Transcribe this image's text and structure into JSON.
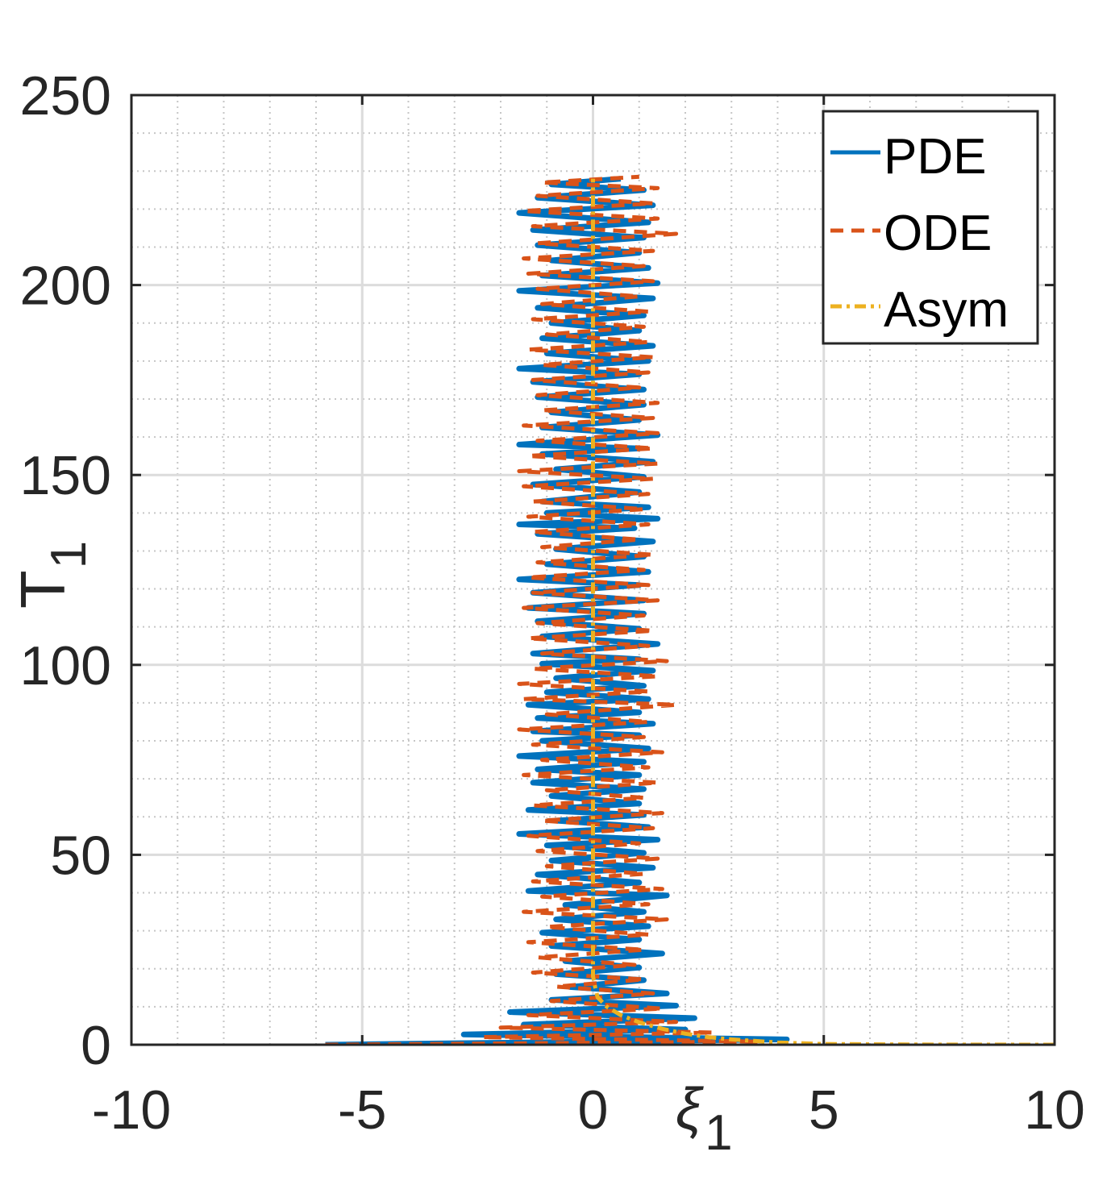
{
  "chart_data": {
    "type": "line",
    "title": "",
    "xlabel": {
      "main": "ξ",
      "sub": "1"
    },
    "ylabel": {
      "main": "T",
      "sub": "1"
    },
    "xlim": [
      -10,
      10
    ],
    "ylim": [
      0,
      250
    ],
    "x_ticks": [
      -10,
      -5,
      0,
      5,
      10
    ],
    "y_ticks": [
      0,
      50,
      100,
      150,
      200,
      250
    ],
    "x_tick_labels": [
      "-10",
      "-5",
      "0",
      "5",
      "10"
    ],
    "y_tick_labels": [
      "0",
      "50",
      "100",
      "150",
      "200",
      "250"
    ],
    "grid": "on (major solid, minor dotted)",
    "legend_position": "top-right",
    "series": [
      {
        "name": "PDE",
        "color": "#0072BD",
        "style": "solid",
        "points": [
          [
            -5.8,
            0.0
          ],
          [
            4.2,
            1.4
          ],
          [
            -2.8,
            2.7
          ],
          [
            2.0,
            4.0
          ],
          [
            -1.5,
            5.3
          ],
          [
            2.2,
            7.0
          ],
          [
            -1.8,
            8.6
          ],
          [
            1.8,
            10.3
          ],
          [
            -0.9,
            11.8
          ],
          [
            1.6,
            13.5
          ],
          [
            -0.5,
            15.2
          ],
          [
            1.1,
            17.0
          ],
          [
            -0.8,
            18.6
          ],
          [
            1.0,
            20.3
          ],
          [
            -0.6,
            22.0
          ],
          [
            1.5,
            24.0
          ],
          [
            -0.9,
            26.0
          ],
          [
            1.0,
            27.7
          ],
          [
            -1.1,
            29.5
          ],
          [
            1.2,
            31.2
          ],
          [
            -0.8,
            33.0
          ],
          [
            1.1,
            35.0
          ],
          [
            -0.6,
            36.8
          ],
          [
            1.6,
            39.3
          ],
          [
            -1.4,
            40.5
          ],
          [
            1.0,
            42.7
          ],
          [
            -1.2,
            44.8
          ],
          [
            1.3,
            46.6
          ],
          [
            -0.9,
            48.5
          ],
          [
            1.1,
            50.5
          ],
          [
            -1.0,
            52.5
          ],
          [
            1.4,
            54.0
          ],
          [
            -1.6,
            55.5
          ],
          [
            1.2,
            57.3
          ],
          [
            -0.8,
            59.0
          ],
          [
            1.1,
            60.5
          ],
          [
            -1.4,
            61.8
          ],
          [
            1.0,
            63.5
          ],
          [
            -0.9,
            65.5
          ],
          [
            1.1,
            67.3
          ],
          [
            -1.3,
            69.0
          ],
          [
            1.0,
            71.0
          ],
          [
            -1.2,
            72.5
          ],
          [
            1.1,
            74.5
          ],
          [
            -1.6,
            76.0
          ],
          [
            1.2,
            78.0
          ],
          [
            -1.1,
            80.0
          ],
          [
            1.0,
            81.5
          ],
          [
            -1.3,
            82.5
          ],
          [
            1.3,
            84.5
          ],
          [
            -1.2,
            86.0
          ],
          [
            1.0,
            87.5
          ],
          [
            -1.4,
            89.5
          ],
          [
            1.2,
            91.0
          ],
          [
            -1.0,
            92.8
          ],
          [
            1.1,
            94.5
          ],
          [
            -0.8,
            96.5
          ],
          [
            1.3,
            98.5
          ],
          [
            -1.1,
            100.3
          ],
          [
            1.0,
            101.5
          ],
          [
            -1.3,
            103.0
          ],
          [
            1.4,
            105.5
          ],
          [
            -1.1,
            107.5
          ],
          [
            1.0,
            109.5
          ],
          [
            -1.2,
            111.5
          ],
          [
            1.1,
            113.5
          ],
          [
            -1.4,
            115.0
          ],
          [
            1.1,
            117.0
          ],
          [
            -1.3,
            119.0
          ],
          [
            1.0,
            121.0
          ],
          [
            -1.6,
            122.5
          ],
          [
            1.2,
            124.5
          ],
          [
            -1.0,
            126.5
          ],
          [
            1.1,
            128.5
          ],
          [
            -0.8,
            130.5
          ],
          [
            1.3,
            132.5
          ],
          [
            -1.2,
            134.5
          ],
          [
            0.9,
            136.0
          ],
          [
            -1.6,
            137.0
          ],
          [
            1.4,
            138.5
          ],
          [
            -1.0,
            140.0
          ],
          [
            1.2,
            141.5
          ],
          [
            -1.1,
            143.0
          ],
          [
            1.0,
            145.5
          ],
          [
            -1.3,
            147.5
          ],
          [
            1.1,
            149.5
          ],
          [
            -0.8,
            151.5
          ],
          [
            1.3,
            153.5
          ],
          [
            -1.1,
            155.5
          ],
          [
            1.0,
            157.0
          ],
          [
            -1.6,
            158.0
          ],
          [
            1.4,
            160.5
          ],
          [
            -1.1,
            162.5
          ],
          [
            1.0,
            164.5
          ],
          [
            -0.9,
            166.5
          ],
          [
            1.1,
            168.5
          ],
          [
            -1.2,
            170.5
          ],
          [
            1.1,
            172.5
          ],
          [
            -1.3,
            174.5
          ],
          [
            1.0,
            176.5
          ],
          [
            -1.6,
            178.0
          ],
          [
            1.2,
            180.0
          ],
          [
            -1.0,
            182.0
          ],
          [
            1.3,
            184.0
          ],
          [
            -1.1,
            186.0
          ],
          [
            1.0,
            188.0
          ],
          [
            -0.9,
            190.0
          ],
          [
            1.1,
            192.0
          ],
          [
            -1.2,
            194.0
          ],
          [
            1.3,
            196.5
          ],
          [
            -1.6,
            198.5
          ],
          [
            1.4,
            200.5
          ],
          [
            -1.1,
            202.5
          ],
          [
            1.2,
            204.5
          ],
          [
            -0.9,
            206.5
          ],
          [
            1.0,
            208.5
          ],
          [
            -1.2,
            210.5
          ],
          [
            1.1,
            212.5
          ],
          [
            -1.3,
            214.5
          ],
          [
            1.2,
            216.5
          ],
          [
            -1.6,
            219.0
          ],
          [
            1.3,
            221.0
          ],
          [
            -1.2,
            223.0
          ],
          [
            1.1,
            225.0
          ],
          [
            -0.9,
            226.5
          ],
          [
            0.6,
            228.0
          ]
        ]
      },
      {
        "name": "ODE",
        "color": "#D95319",
        "style": "dashed",
        "points": [
          [
            -5.8,
            0.0
          ],
          [
            3.6,
            0.8
          ],
          [
            -2.4,
            2.0
          ],
          [
            2.6,
            3.2
          ],
          [
            -2.0,
            4.5
          ],
          [
            1.8,
            6.0
          ],
          [
            -1.4,
            7.8
          ],
          [
            1.5,
            9.5
          ],
          [
            -0.9,
            11.5
          ],
          [
            1.3,
            13.5
          ],
          [
            -0.8,
            15.3
          ],
          [
            1.1,
            17.2
          ],
          [
            -1.3,
            19.0
          ],
          [
            0.9,
            21.0
          ],
          [
            -1.2,
            23.0
          ],
          [
            1.1,
            25.0
          ],
          [
            -1.4,
            27.0
          ],
          [
            1.2,
            29.0
          ],
          [
            -1.0,
            31.0
          ],
          [
            1.6,
            33.0
          ],
          [
            -1.5,
            35.0
          ],
          [
            1.2,
            37.0
          ],
          [
            -1.1,
            39.0
          ],
          [
            1.5,
            41.0
          ],
          [
            -1.3,
            43.0
          ],
          [
            1.1,
            45.0
          ],
          [
            -1.0,
            47.0
          ],
          [
            1.4,
            49.0
          ],
          [
            -1.2,
            51.0
          ],
          [
            1.0,
            53.0
          ],
          [
            -1.4,
            55.0
          ],
          [
            1.3,
            57.0
          ],
          [
            -1.1,
            59.0
          ],
          [
            1.5,
            61.0
          ],
          [
            -1.3,
            63.0
          ],
          [
            1.1,
            65.0
          ],
          [
            -1.0,
            67.0
          ],
          [
            1.4,
            69.0
          ],
          [
            -1.5,
            71.0
          ],
          [
            1.2,
            73.0
          ],
          [
            -1.1,
            75.0
          ],
          [
            1.5,
            77.0
          ],
          [
            -1.3,
            79.0
          ],
          [
            1.1,
            81.0
          ],
          [
            -1.6,
            83.0
          ],
          [
            1.2,
            85.0
          ],
          [
            -1.0,
            87.0
          ],
          [
            1.8,
            89.5
          ],
          [
            -1.5,
            91.0
          ],
          [
            1.2,
            93.0
          ],
          [
            -1.6,
            95.0
          ],
          [
            1.4,
            97.0
          ],
          [
            -1.3,
            99.0
          ],
          [
            1.6,
            101.0
          ],
          [
            -1.1,
            103.0
          ],
          [
            1.2,
            105.0
          ],
          [
            -1.4,
            107.0
          ],
          [
            1.3,
            109.0
          ],
          [
            -1.2,
            111.0
          ],
          [
            1.1,
            113.0
          ],
          [
            -1.5,
            115.0
          ],
          [
            1.4,
            117.0
          ],
          [
            -1.3,
            119.0
          ],
          [
            1.2,
            121.0
          ],
          [
            -1.4,
            123.0
          ],
          [
            1.1,
            125.0
          ],
          [
            -1.2,
            127.0
          ],
          [
            1.3,
            129.0
          ],
          [
            -1.1,
            131.0
          ],
          [
            1.0,
            133.0
          ],
          [
            -1.3,
            135.0
          ],
          [
            1.2,
            137.0
          ],
          [
            -1.4,
            139.0
          ],
          [
            1.1,
            141.0
          ],
          [
            -1.3,
            143.0
          ],
          [
            1.2,
            145.0
          ],
          [
            -1.5,
            147.0
          ],
          [
            1.3,
            149.0
          ],
          [
            -1.6,
            151.0
          ],
          [
            1.4,
            153.0
          ],
          [
            -1.4,
            155.0
          ],
          [
            1.3,
            157.0
          ],
          [
            -1.2,
            159.0
          ],
          [
            1.4,
            161.0
          ],
          [
            -1.5,
            163.0
          ],
          [
            1.3,
            165.0
          ],
          [
            -1.1,
            167.0
          ],
          [
            1.4,
            169.0
          ],
          [
            -1.2,
            171.0
          ],
          [
            1.0,
            173.0
          ],
          [
            -1.3,
            175.0
          ],
          [
            1.2,
            177.0
          ],
          [
            -1.1,
            179.0
          ],
          [
            1.3,
            181.0
          ],
          [
            -1.4,
            183.0
          ],
          [
            1.2,
            185.0
          ],
          [
            -1.0,
            187.0
          ],
          [
            1.1,
            189.0
          ],
          [
            -1.3,
            191.0
          ],
          [
            1.2,
            193.0
          ],
          [
            -1.1,
            195.0
          ],
          [
            1.0,
            197.0
          ],
          [
            -1.2,
            199.0
          ],
          [
            1.3,
            201.0
          ],
          [
            -1.4,
            203.0
          ],
          [
            1.1,
            205.0
          ],
          [
            -1.5,
            207.0
          ],
          [
            1.3,
            209.0
          ],
          [
            -1.2,
            211.0
          ],
          [
            1.8,
            213.5
          ],
          [
            -1.3,
            215.5
          ],
          [
            1.4,
            217.5
          ],
          [
            -1.5,
            219.5
          ],
          [
            1.3,
            221.5
          ],
          [
            -1.2,
            223.5
          ],
          [
            1.4,
            225.5
          ],
          [
            -1.1,
            227.0
          ],
          [
            1.0,
            228.5
          ]
        ]
      },
      {
        "name": "Asym",
        "color": "#EDB120",
        "style": "dash-dot",
        "points": [
          [
            10.0,
            0.0
          ],
          [
            7.0,
            0.05
          ],
          [
            5.0,
            0.2
          ],
          [
            4.0,
            0.6
          ],
          [
            3.0,
            1.4
          ],
          [
            2.5,
            2.0
          ],
          [
            2.0,
            2.9
          ],
          [
            1.5,
            4.2
          ],
          [
            1.0,
            5.9
          ],
          [
            0.6,
            7.8
          ],
          [
            0.3,
            10.0
          ],
          [
            0.1,
            12.5
          ],
          [
            0.05,
            15.0
          ],
          [
            0.0,
            18.0
          ],
          [
            0.0,
            228.0
          ]
        ]
      }
    ]
  }
}
